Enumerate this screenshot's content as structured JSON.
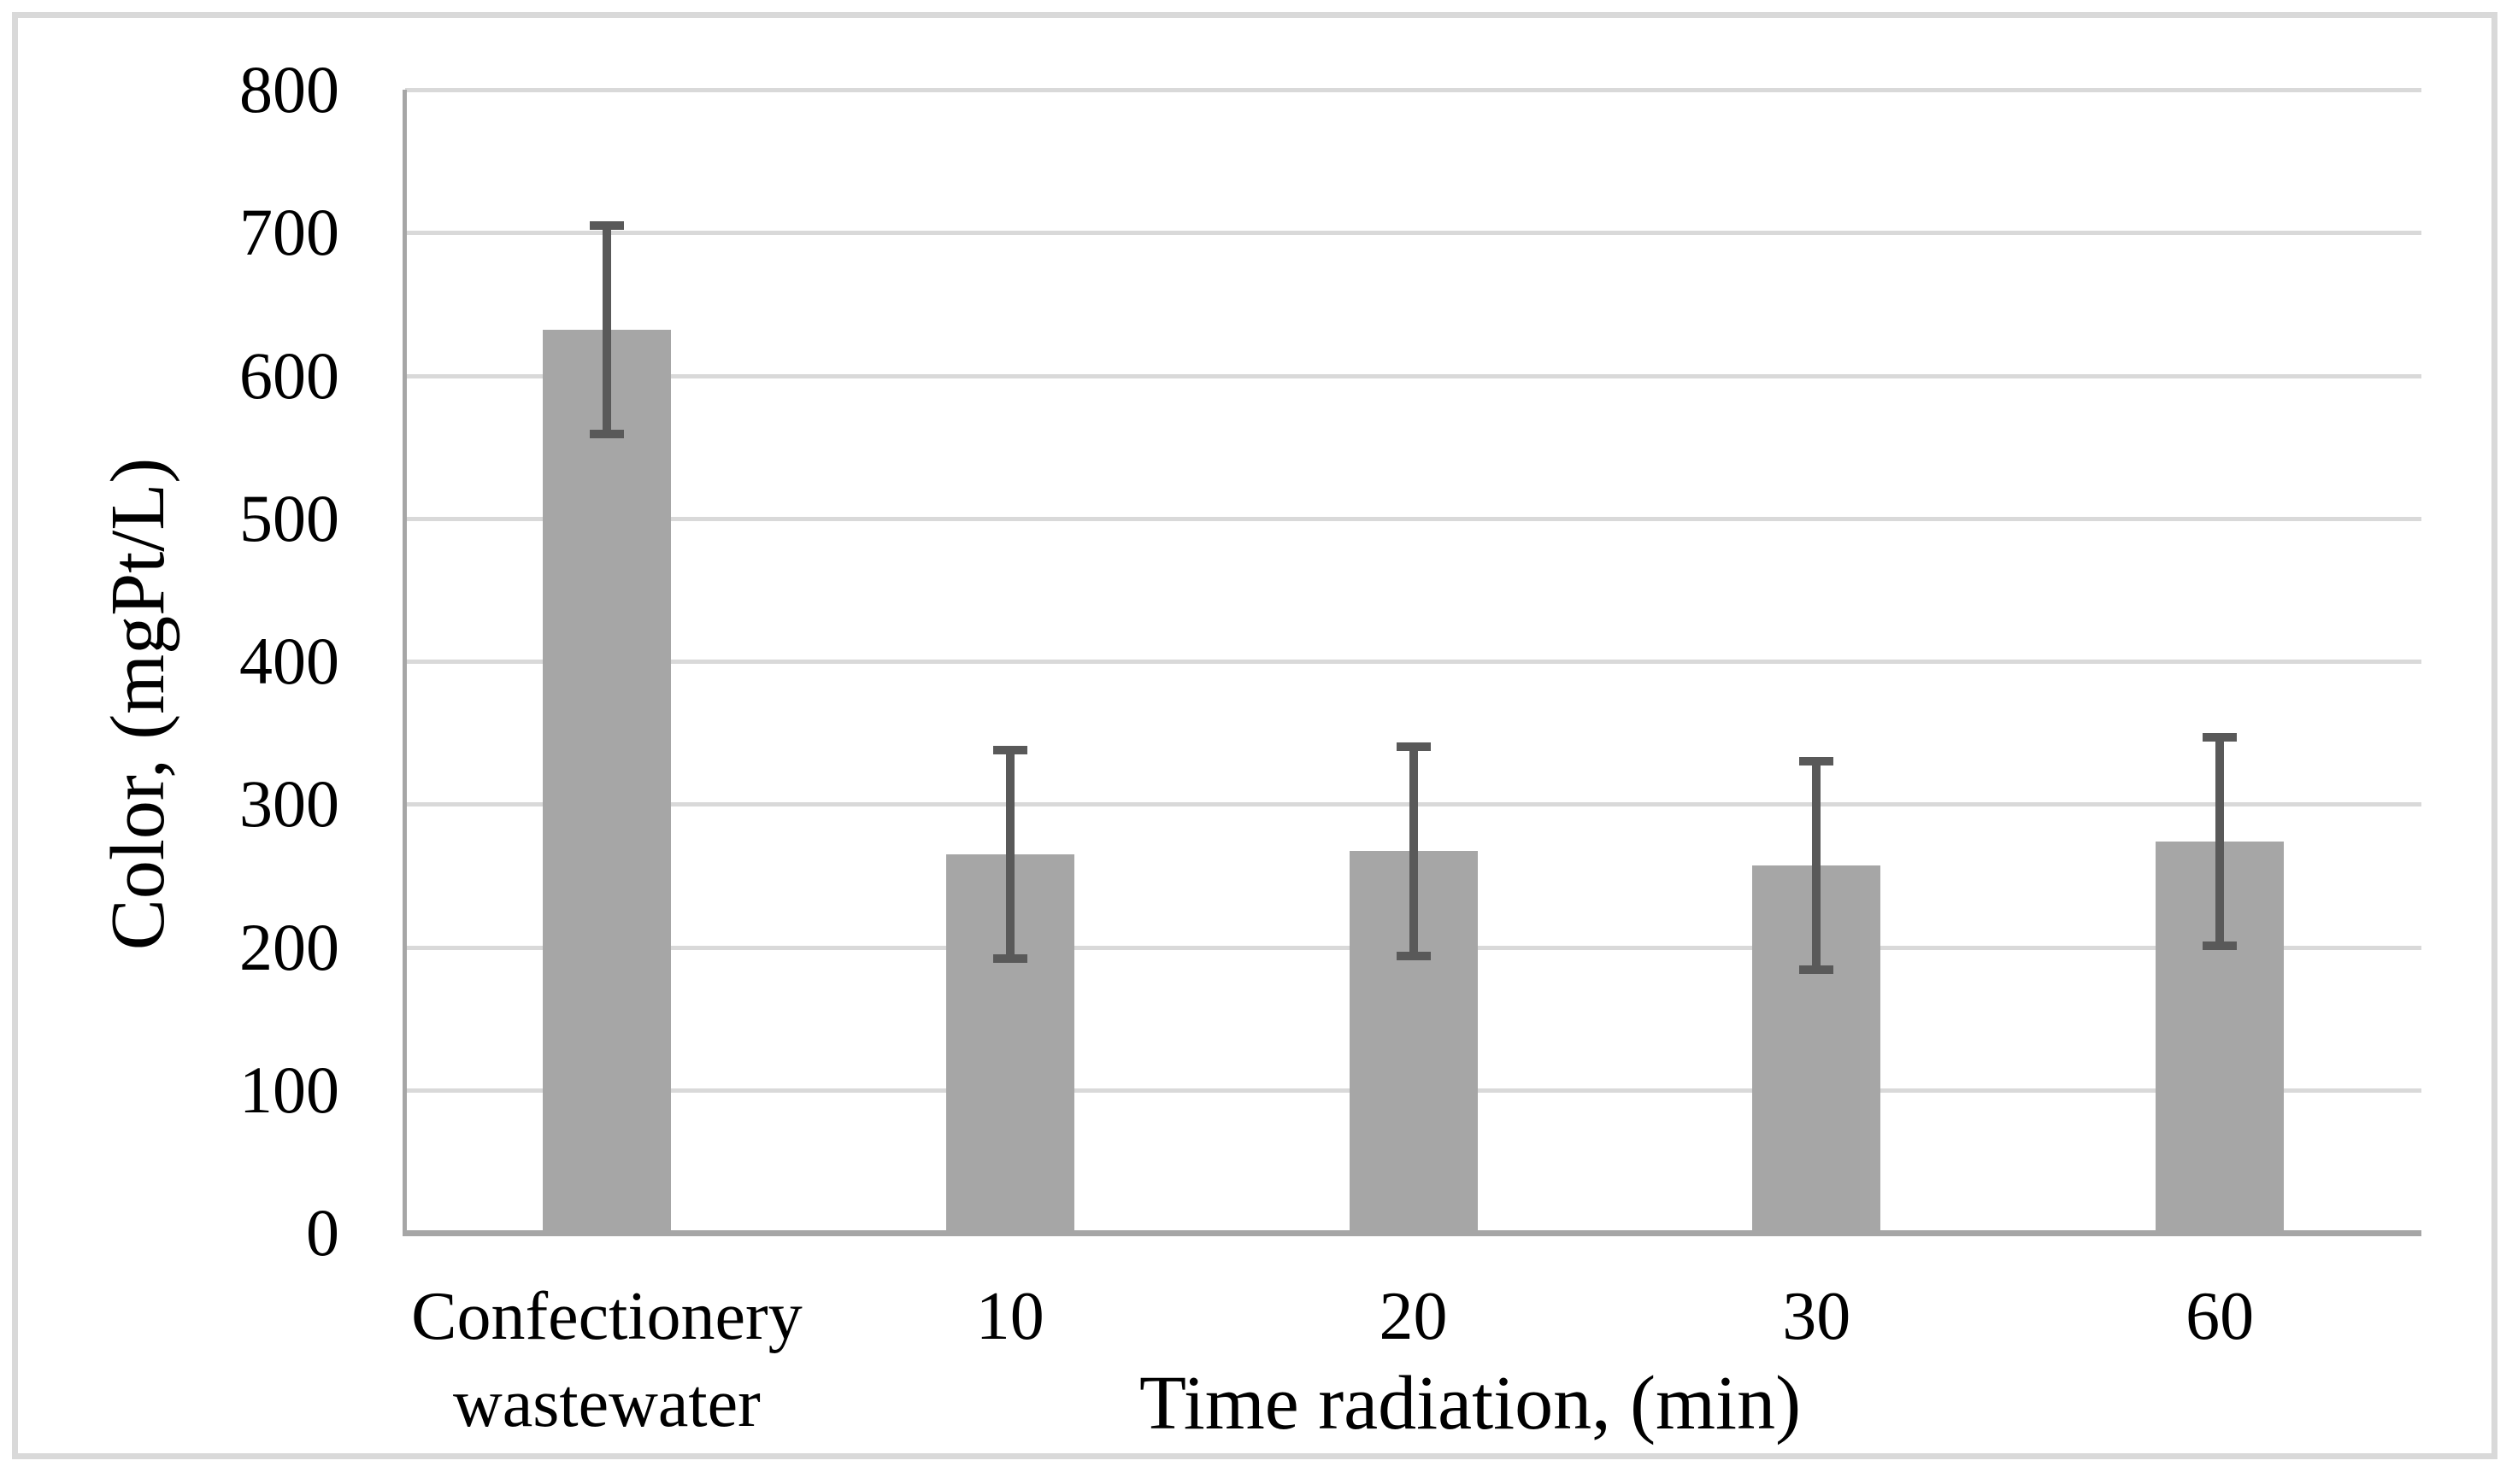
{
  "chart_data": {
    "type": "bar",
    "title": "",
    "categories": [
      "Confectionery wastewater",
      "10",
      "20",
      "30",
      "60"
    ],
    "values": [
      632,
      265,
      267,
      257,
      274
    ],
    "error_bars_plus_minus": [
      73,
      73,
      73,
      73,
      73
    ],
    "xlabel": "Time radiation, (min)",
    "ylabel": "Color, (mgPt/L)",
    "ylim": [
      0,
      800
    ],
    "yticks": [
      0,
      100,
      200,
      300,
      400,
      500,
      600,
      700,
      800
    ],
    "grid": "horizontal",
    "legend_position": "none",
    "colors": {
      "bar_fill": "#a6a6a6",
      "error_bar": "#595959",
      "gridline": "#d9d9d9",
      "axis_line": "#a6a6a6",
      "frame_border": "#d9d9d9",
      "text": "#000000",
      "background": "#ffffff"
    }
  }
}
